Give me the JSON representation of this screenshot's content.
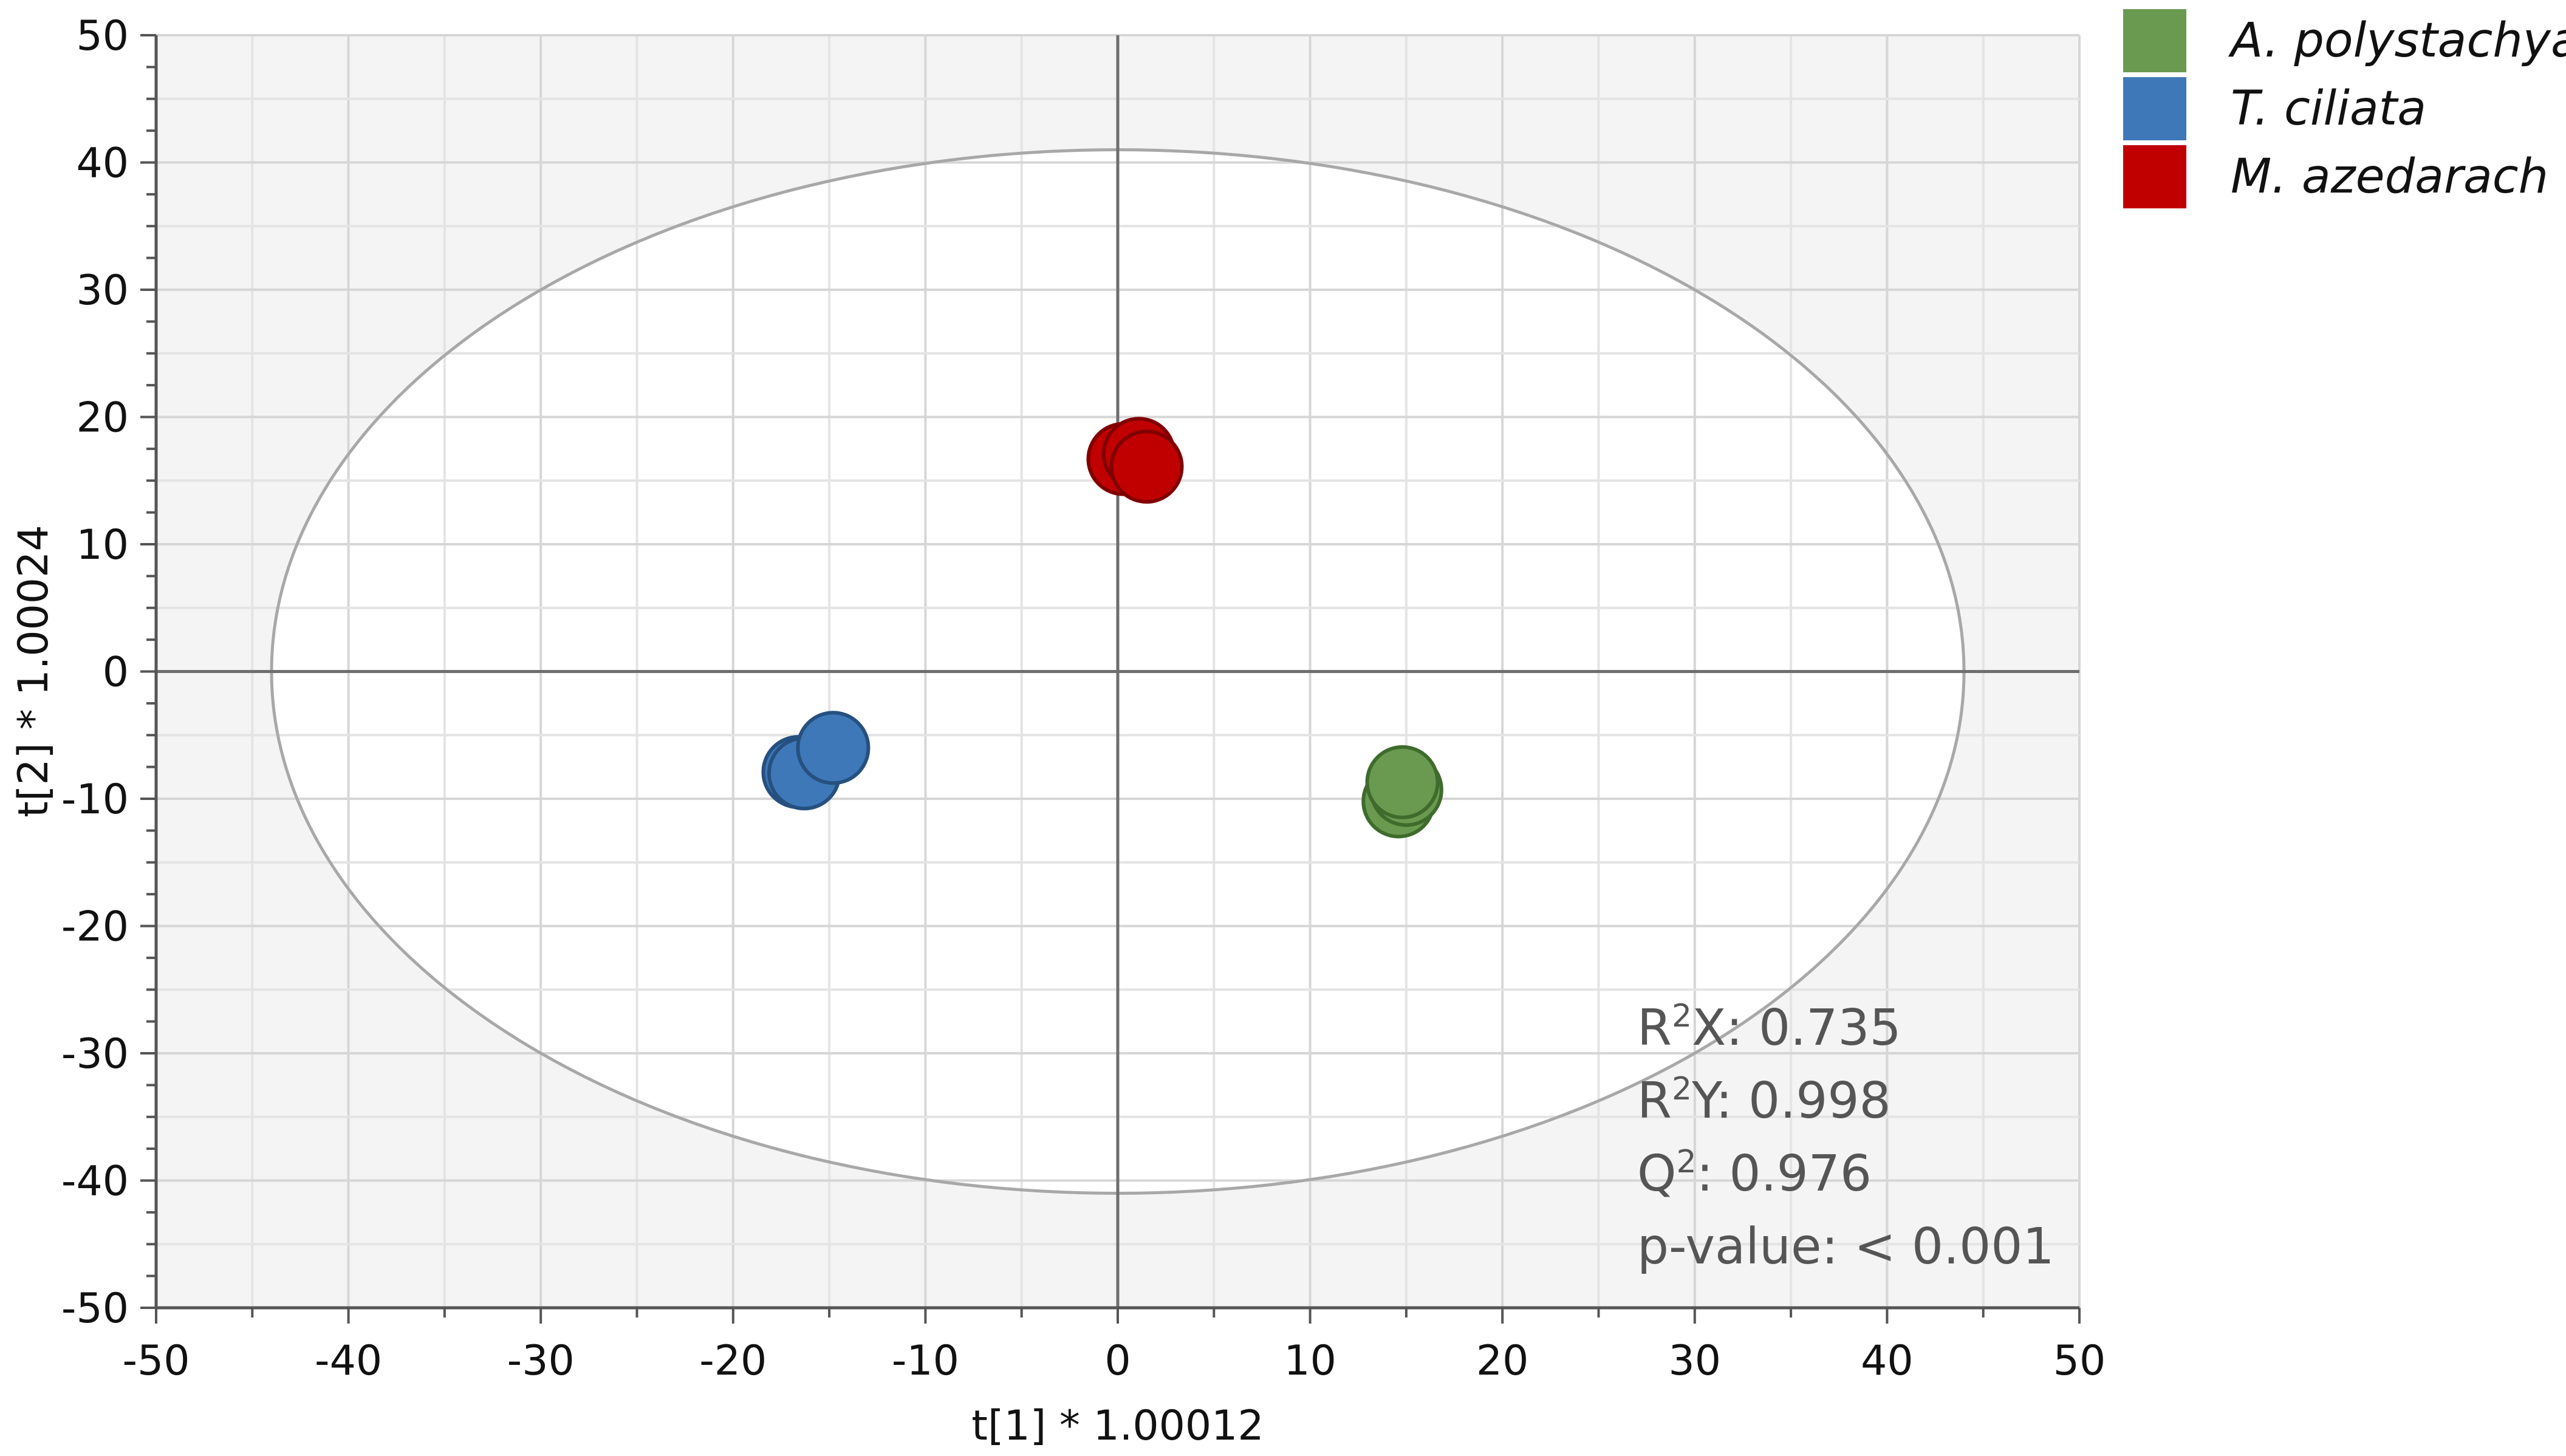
{
  "chart_data": {
    "type": "scatter",
    "xlabel": "t[1] * 1.00012",
    "ylabel": "t[2] * 1.00024",
    "xlim": [
      -50,
      50
    ],
    "ylim": [
      -50,
      50
    ],
    "xticks": [
      -50,
      -40,
      -30,
      -20,
      -10,
      0,
      10,
      20,
      30,
      40,
      50
    ],
    "yticks": [
      -50,
      -40,
      -30,
      -20,
      -10,
      0,
      10,
      20,
      30,
      40,
      50
    ],
    "grid": true,
    "legend_position": "top-right outside",
    "ellipse": {
      "rx": 44,
      "ry": 41
    },
    "series": [
      {
        "name": "A. polystachya",
        "color": "#6a9a4f",
        "edge": "#3f6b2c",
        "points": [
          [
            14.6,
            -10.2
          ],
          [
            15.0,
            -9.3
          ],
          [
            14.8,
            -8.7
          ]
        ]
      },
      {
        "name": "T. ciliata",
        "color": "#3f78b8",
        "edge": "#26507f",
        "points": [
          [
            -16.6,
            -7.9
          ],
          [
            -16.3,
            -8.0
          ],
          [
            -14.8,
            -6.0
          ]
        ]
      },
      {
        "name": "M. azedarach",
        "color": "#c00000",
        "edge": "#800000",
        "points": [
          [
            0.3,
            16.7
          ],
          [
            1.1,
            17.1
          ],
          [
            1.5,
            16.1
          ]
        ]
      }
    ]
  },
  "stats": {
    "r2x_prefix": "R",
    "r2x_sup": "2",
    "r2x_suffix": "X: 0.735",
    "r2y_prefix": "R",
    "r2y_sup": "2",
    "r2y_suffix": "Y: 0.998",
    "q2_prefix": "Q",
    "q2_sup": "2",
    "q2_suffix": ": 0.976",
    "pvalue": "p-value: < 0.001"
  }
}
